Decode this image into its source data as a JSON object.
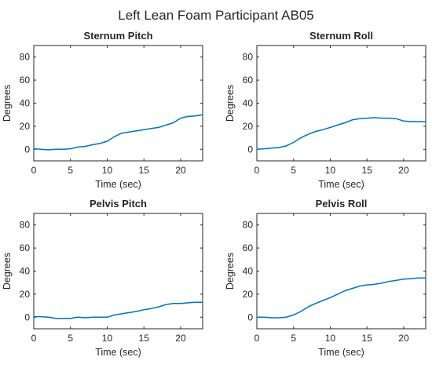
{
  "figure": {
    "title": "Left Lean Foam Participant AB05"
  },
  "colors": {
    "line": "#0072BD",
    "axes": "#262626",
    "background": "#ffffff"
  },
  "chart_data": [
    {
      "type": "line",
      "title": "Sternum Pitch",
      "xlabel": "Time (sec)",
      "ylabel": "Degrees",
      "xlim": [
        0,
        23
      ],
      "ylim": [
        -10,
        90
      ],
      "xticks": [
        0,
        5,
        10,
        15,
        20
      ],
      "yticks": [
        0,
        20,
        40,
        60,
        80
      ],
      "grid": false,
      "series": [
        {
          "x": [
            0,
            1,
            2,
            3,
            4,
            5,
            6,
            7,
            8,
            9,
            10,
            11,
            12,
            13,
            14,
            15,
            16,
            17,
            18,
            19,
            20,
            21,
            22,
            23
          ],
          "y": [
            0.5,
            0,
            -0.5,
            0,
            0,
            0.5,
            2,
            2.5,
            4,
            5,
            7,
            11,
            14,
            15,
            16,
            17,
            18,
            19,
            21,
            23,
            27,
            28.5,
            29,
            30
          ]
        }
      ]
    },
    {
      "type": "line",
      "title": "Sternum Roll",
      "xlabel": "Time (sec)",
      "ylabel": "Degrees",
      "xlim": [
        0,
        23
      ],
      "ylim": [
        -10,
        90
      ],
      "xticks": [
        0,
        5,
        10,
        15,
        20
      ],
      "yticks": [
        0,
        20,
        40,
        60,
        80
      ],
      "grid": false,
      "series": [
        {
          "x": [
            0,
            1,
            2,
            3,
            4,
            5,
            6,
            7,
            8,
            9,
            10,
            11,
            12,
            13,
            14,
            15,
            16,
            17,
            18,
            19,
            20,
            21,
            22,
            23
          ],
          "y": [
            0,
            0.5,
            1,
            1.5,
            3,
            6,
            10,
            13,
            15.5,
            17,
            19,
            21,
            23,
            25.5,
            26.5,
            27,
            27.5,
            27,
            27,
            26.5,
            24.5,
            24,
            24,
            24
          ]
        }
      ]
    },
    {
      "type": "line",
      "title": "Pelvis Pitch",
      "xlabel": "Time (sec)",
      "ylabel": "Degrees",
      "xlim": [
        0,
        23
      ],
      "ylim": [
        -10,
        90
      ],
      "xticks": [
        0,
        5,
        10,
        15,
        20
      ],
      "yticks": [
        0,
        20,
        40,
        60,
        80
      ],
      "grid": false,
      "series": [
        {
          "x": [
            0,
            1,
            2,
            3,
            4,
            5,
            6,
            7,
            8,
            9,
            10,
            11,
            12,
            13,
            14,
            15,
            16,
            17,
            18,
            19,
            20,
            21,
            22,
            23
          ],
          "y": [
            0.5,
            0.5,
            0,
            -1,
            -1,
            -1,
            0,
            -0.5,
            0,
            0,
            0,
            2,
            3,
            4,
            5,
            6.5,
            7.5,
            9,
            11,
            12,
            12,
            12.5,
            13,
            13
          ]
        }
      ]
    },
    {
      "type": "line",
      "title": "Pelvis Roll",
      "xlabel": "Time (sec)",
      "ylabel": "Degrees",
      "xlim": [
        0,
        23
      ],
      "ylim": [
        -10,
        90
      ],
      "xticks": [
        0,
        5,
        10,
        15,
        20
      ],
      "yticks": [
        0,
        20,
        40,
        60,
        80
      ],
      "grid": false,
      "series": [
        {
          "x": [
            0,
            1,
            2,
            3,
            4,
            5,
            6,
            7,
            8,
            9,
            10,
            11,
            12,
            13,
            14,
            15,
            16,
            17,
            18,
            19,
            20,
            21,
            22,
            23
          ],
          "y": [
            0,
            0,
            -0.5,
            -0.5,
            0,
            2,
            5,
            9,
            12,
            14.5,
            17,
            20,
            23,
            25,
            27,
            28,
            28.5,
            29.5,
            31,
            32,
            33,
            33.5,
            34,
            34
          ]
        }
      ]
    }
  ]
}
